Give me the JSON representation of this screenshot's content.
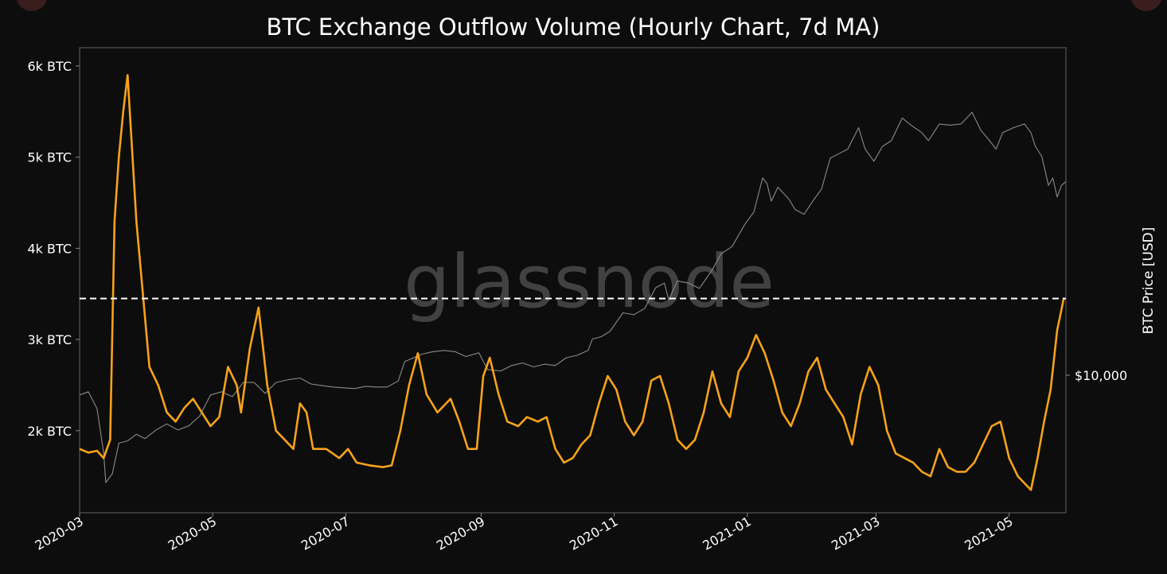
{
  "chart_data": {
    "type": "line",
    "title": "BTC Exchange Outflow Volume (Hourly Chart, 7d MA)",
    "watermark": "glassnode",
    "xlabel": "",
    "ylabel_left": "",
    "ylabel_right": "BTC Price [USD]",
    "x_range": [
      "2020-03-01",
      "2021-05-27"
    ],
    "x_ticks": [
      "2020-03",
      "2020-05",
      "2020-07",
      "2020-09",
      "2020-11",
      "2021-01",
      "2021-03",
      "2021-05"
    ],
    "ylim_left": [
      1100,
      6200
    ],
    "y_ticks_left": [
      {
        "value": 2000,
        "label": "2k BTC"
      },
      {
        "value": 3000,
        "label": "3k BTC"
      },
      {
        "value": 4000,
        "label": "4k BTC"
      },
      {
        "value": 5000,
        "label": "5k BTC"
      },
      {
        "value": 6000,
        "label": "6k BTC"
      }
    ],
    "ylim_right_log": [
      3800,
      100000
    ],
    "y_ticks_right": [
      {
        "value": 10000,
        "label": "$10,000"
      }
    ],
    "threshold_line": {
      "value": 3450,
      "style": "dashed",
      "color": "#ffffff"
    },
    "grid": false,
    "series": [
      {
        "axis": "left",
        "color": "#f7a21b",
        "points": [
          [
            "2020-03-01",
            1800
          ],
          [
            "2020-03-05",
            1760
          ],
          [
            "2020-03-09",
            1780
          ],
          [
            "2020-03-12",
            1700
          ],
          [
            "2020-03-15",
            1900
          ],
          [
            "2020-03-17",
            4300
          ],
          [
            "2020-03-19",
            5000
          ],
          [
            "2020-03-21",
            5500
          ],
          [
            "2020-03-23",
            5900
          ],
          [
            "2020-03-25",
            5100
          ],
          [
            "2020-03-27",
            4300
          ],
          [
            "2020-03-30",
            3500
          ],
          [
            "2020-04-02",
            2700
          ],
          [
            "2020-04-06",
            2500
          ],
          [
            "2020-04-10",
            2200
          ],
          [
            "2020-04-14",
            2100
          ],
          [
            "2020-04-18",
            2250
          ],
          [
            "2020-04-22",
            2350
          ],
          [
            "2020-04-26",
            2200
          ],
          [
            "2020-04-30",
            2050
          ],
          [
            "2020-05-04",
            2150
          ],
          [
            "2020-05-08",
            2700
          ],
          [
            "2020-05-12",
            2500
          ],
          [
            "2020-05-14",
            2200
          ],
          [
            "2020-05-18",
            2900
          ],
          [
            "2020-05-22",
            3350
          ],
          [
            "2020-05-26",
            2500
          ],
          [
            "2020-05-30",
            2000
          ],
          [
            "2020-06-03",
            1900
          ],
          [
            "2020-06-07",
            1800
          ],
          [
            "2020-06-10",
            2300
          ],
          [
            "2020-06-13",
            2200
          ],
          [
            "2020-06-16",
            1800
          ],
          [
            "2020-06-22",
            1800
          ],
          [
            "2020-06-28",
            1700
          ],
          [
            "2020-07-02",
            1800
          ],
          [
            "2020-07-06",
            1650
          ],
          [
            "2020-07-12",
            1620
          ],
          [
            "2020-07-18",
            1600
          ],
          [
            "2020-07-22",
            1620
          ],
          [
            "2020-07-26",
            2000
          ],
          [
            "2020-07-30",
            2500
          ],
          [
            "2020-08-03",
            2850
          ],
          [
            "2020-08-07",
            2400
          ],
          [
            "2020-08-12",
            2200
          ],
          [
            "2020-08-18",
            2350
          ],
          [
            "2020-08-22",
            2100
          ],
          [
            "2020-08-26",
            1800
          ],
          [
            "2020-08-30",
            1800
          ],
          [
            "2020-09-02",
            2600
          ],
          [
            "2020-09-05",
            2800
          ],
          [
            "2020-09-09",
            2400
          ],
          [
            "2020-09-13",
            2100
          ],
          [
            "2020-09-18",
            2050
          ],
          [
            "2020-09-22",
            2150
          ],
          [
            "2020-09-27",
            2100
          ],
          [
            "2020-10-01",
            2150
          ],
          [
            "2020-10-05",
            1800
          ],
          [
            "2020-10-09",
            1650
          ],
          [
            "2020-10-13",
            1700
          ],
          [
            "2020-10-17",
            1850
          ],
          [
            "2020-10-21",
            1950
          ],
          [
            "2020-10-25",
            2300
          ],
          [
            "2020-10-29",
            2600
          ],
          [
            "2020-11-02",
            2450
          ],
          [
            "2020-11-06",
            2100
          ],
          [
            "2020-11-10",
            1950
          ],
          [
            "2020-11-14",
            2100
          ],
          [
            "2020-11-18",
            2550
          ],
          [
            "2020-11-22",
            2600
          ],
          [
            "2020-11-26",
            2300
          ],
          [
            "2020-11-30",
            1900
          ],
          [
            "2020-12-04",
            1800
          ],
          [
            "2020-12-08",
            1900
          ],
          [
            "2020-12-12",
            2200
          ],
          [
            "2020-12-16",
            2650
          ],
          [
            "2020-12-20",
            2300
          ],
          [
            "2020-12-24",
            2150
          ],
          [
            "2020-12-28",
            2650
          ],
          [
            "2021-01-01",
            2800
          ],
          [
            "2021-01-05",
            3050
          ],
          [
            "2021-01-09",
            2850
          ],
          [
            "2021-01-13",
            2550
          ],
          [
            "2021-01-17",
            2200
          ],
          [
            "2021-01-21",
            2050
          ],
          [
            "2021-01-25",
            2300
          ],
          [
            "2021-01-29",
            2650
          ],
          [
            "2021-02-02",
            2800
          ],
          [
            "2021-02-06",
            2450
          ],
          [
            "2021-02-10",
            2300
          ],
          [
            "2021-02-14",
            2150
          ],
          [
            "2021-02-18",
            1850
          ],
          [
            "2021-02-22",
            2400
          ],
          [
            "2021-02-26",
            2700
          ],
          [
            "2021-03-02",
            2500
          ],
          [
            "2021-03-06",
            2000
          ],
          [
            "2021-03-10",
            1750
          ],
          [
            "2021-03-14",
            1700
          ],
          [
            "2021-03-18",
            1650
          ],
          [
            "2021-03-22",
            1550
          ],
          [
            "2021-03-26",
            1500
          ],
          [
            "2021-03-30",
            1800
          ],
          [
            "2021-04-03",
            1600
          ],
          [
            "2021-04-07",
            1550
          ],
          [
            "2021-04-11",
            1550
          ],
          [
            "2021-04-15",
            1650
          ],
          [
            "2021-04-19",
            1850
          ],
          [
            "2021-04-23",
            2050
          ],
          [
            "2021-04-27",
            2100
          ],
          [
            "2021-05-01",
            1700
          ],
          [
            "2021-05-05",
            1500
          ],
          [
            "2021-05-09",
            1400
          ],
          [
            "2021-05-11",
            1350
          ],
          [
            "2021-05-14",
            1700
          ],
          [
            "2021-05-17",
            2100
          ],
          [
            "2021-05-20",
            2450
          ],
          [
            "2021-05-23",
            3100
          ],
          [
            "2021-05-26",
            3450
          ]
        ]
      },
      {
        "axis": "right",
        "color": "#8a8a8a",
        "points": [
          [
            "2020-03-01",
            8700
          ],
          [
            "2020-03-05",
            8900
          ],
          [
            "2020-03-09",
            7900
          ],
          [
            "2020-03-12",
            5800
          ],
          [
            "2020-03-13",
            4700
          ],
          [
            "2020-03-16",
            5000
          ],
          [
            "2020-03-19",
            6200
          ],
          [
            "2020-03-23",
            6300
          ],
          [
            "2020-03-27",
            6600
          ],
          [
            "2020-03-31",
            6400
          ],
          [
            "2020-04-05",
            6800
          ],
          [
            "2020-04-10",
            7100
          ],
          [
            "2020-04-15",
            6800
          ],
          [
            "2020-04-20",
            7000
          ],
          [
            "2020-04-25",
            7500
          ],
          [
            "2020-04-30",
            8700
          ],
          [
            "2020-05-05",
            8900
          ],
          [
            "2020-05-10",
            8600
          ],
          [
            "2020-05-15",
            9500
          ],
          [
            "2020-05-20",
            9500
          ],
          [
            "2020-05-25",
            8800
          ],
          [
            "2020-05-30",
            9500
          ],
          [
            "2020-06-05",
            9700
          ],
          [
            "2020-06-10",
            9800
          ],
          [
            "2020-06-15",
            9400
          ],
          [
            "2020-06-20",
            9300
          ],
          [
            "2020-06-25",
            9200
          ],
          [
            "2020-06-30",
            9150
          ],
          [
            "2020-07-05",
            9100
          ],
          [
            "2020-07-10",
            9250
          ],
          [
            "2020-07-15",
            9200
          ],
          [
            "2020-07-20",
            9200
          ],
          [
            "2020-07-25",
            9600
          ],
          [
            "2020-07-28",
            11000
          ],
          [
            "2020-08-01",
            11300
          ],
          [
            "2020-08-05",
            11600
          ],
          [
            "2020-08-10",
            11800
          ],
          [
            "2020-08-15",
            11900
          ],
          [
            "2020-08-20",
            11800
          ],
          [
            "2020-08-25",
            11400
          ],
          [
            "2020-08-31",
            11700
          ],
          [
            "2020-09-04",
            10400
          ],
          [
            "2020-09-10",
            10300
          ],
          [
            "2020-09-15",
            10700
          ],
          [
            "2020-09-20",
            10900
          ],
          [
            "2020-09-25",
            10600
          ],
          [
            "2020-09-30",
            10800
          ],
          [
            "2020-10-05",
            10700
          ],
          [
            "2020-10-10",
            11300
          ],
          [
            "2020-10-15",
            11500
          ],
          [
            "2020-10-20",
            11900
          ],
          [
            "2020-10-22",
            12900
          ],
          [
            "2020-10-26",
            13100
          ],
          [
            "2020-10-30",
            13600
          ],
          [
            "2020-11-05",
            15500
          ],
          [
            "2020-11-10",
            15300
          ],
          [
            "2020-11-15",
            16000
          ],
          [
            "2020-11-20",
            18500
          ],
          [
            "2020-11-24",
            19100
          ],
          [
            "2020-11-26",
            17000
          ],
          [
            "2020-11-30",
            19400
          ],
          [
            "2020-12-05",
            19100
          ],
          [
            "2020-12-10",
            18400
          ],
          [
            "2020-12-16",
            21000
          ],
          [
            "2020-12-20",
            23500
          ],
          [
            "2020-12-25",
            24700
          ],
          [
            "2020-12-31",
            29000
          ],
          [
            "2021-01-04",
            31500
          ],
          [
            "2021-01-08",
            40000
          ],
          [
            "2021-01-10",
            38500
          ],
          [
            "2021-01-12",
            34000
          ],
          [
            "2021-01-15",
            37500
          ],
          [
            "2021-01-20",
            34500
          ],
          [
            "2021-01-23",
            32000
          ],
          [
            "2021-01-27",
            31000
          ],
          [
            "2021-01-31",
            34000
          ],
          [
            "2021-02-04",
            37000
          ],
          [
            "2021-02-08",
            46000
          ],
          [
            "2021-02-12",
            47500
          ],
          [
            "2021-02-16",
            49000
          ],
          [
            "2021-02-21",
            57000
          ],
          [
            "2021-02-24",
            49000
          ],
          [
            "2021-02-28",
            45000
          ],
          [
            "2021-03-04",
            50000
          ],
          [
            "2021-03-08",
            52000
          ],
          [
            "2021-03-13",
            61000
          ],
          [
            "2021-03-17",
            58000
          ],
          [
            "2021-03-22",
            55000
          ],
          [
            "2021-03-25",
            52000
          ],
          [
            "2021-03-30",
            58500
          ],
          [
            "2021-04-04",
            58000
          ],
          [
            "2021-04-09",
            58500
          ],
          [
            "2021-04-14",
            63500
          ],
          [
            "2021-04-18",
            56000
          ],
          [
            "2021-04-22",
            52000
          ],
          [
            "2021-04-25",
            49000
          ],
          [
            "2021-04-28",
            55000
          ],
          [
            "2021-05-03",
            57000
          ],
          [
            "2021-05-08",
            58500
          ],
          [
            "2021-05-11",
            55000
          ],
          [
            "2021-05-13",
            50000
          ],
          [
            "2021-05-16",
            46500
          ],
          [
            "2021-05-19",
            38000
          ],
          [
            "2021-05-21",
            40000
          ],
          [
            "2021-05-23",
            35000
          ],
          [
            "2021-05-25",
            38000
          ],
          [
            "2021-05-27",
            39000
          ]
        ]
      }
    ]
  }
}
